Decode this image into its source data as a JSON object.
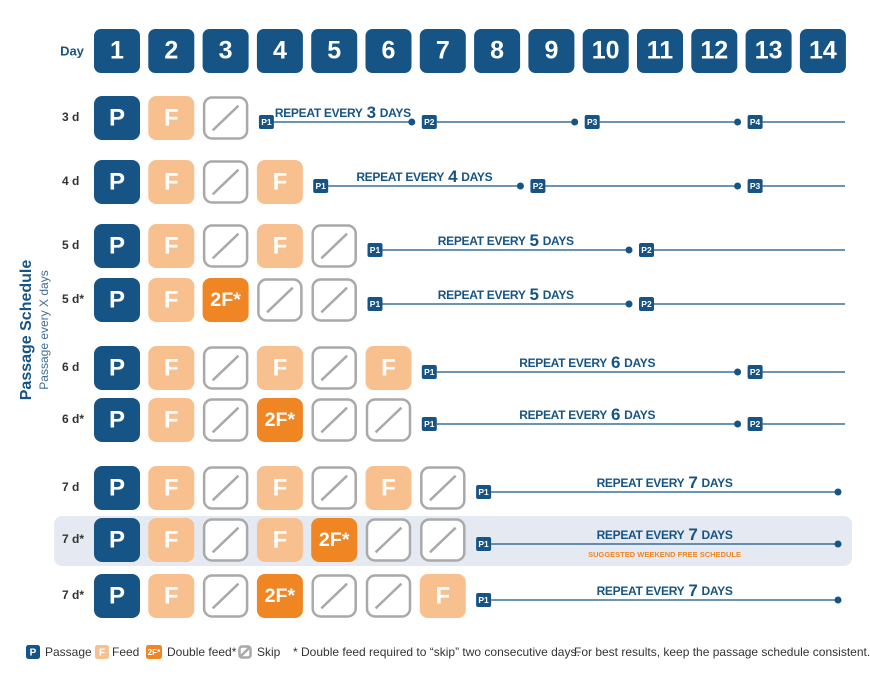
{
  "header": {
    "day_label": "Day",
    "days": [
      1,
      2,
      3,
      4,
      5,
      6,
      7,
      8,
      9,
      10,
      11,
      12,
      13,
      14
    ]
  },
  "side_title": "Passage Schedule",
  "side_subtitle": "Passage every X days",
  "rows": [
    {
      "label": "3 d",
      "cells": [
        "P",
        "F",
        null
      ],
      "repeat": {
        "prefix": "REPEAT EVERY",
        "number": 3,
        "suffix": "DAYS"
      },
      "markers": [
        "P1",
        "P2",
        "P3",
        "P4"
      ]
    },
    {
      "label": "4 d",
      "cells": [
        "P",
        "F",
        null,
        "F"
      ],
      "repeat": {
        "prefix": "REPEAT EVERY",
        "number": 4,
        "suffix": "DAYS"
      },
      "markers": [
        "P1",
        "P2",
        "P3"
      ]
    },
    {
      "label": "5 d",
      "cells": [
        "P",
        "F",
        null,
        "F",
        null
      ],
      "repeat": {
        "prefix": "REPEAT EVERY",
        "number": 5,
        "suffix": "DAYS"
      },
      "markers": [
        "P1",
        "P2"
      ]
    },
    {
      "label": "5 d*",
      "cells": [
        "P",
        "F",
        "2F*",
        null,
        null
      ],
      "repeat": {
        "prefix": "REPEAT EVERY",
        "number": 5,
        "suffix": "DAYS"
      },
      "markers": [
        "P1",
        "P2"
      ]
    },
    {
      "label": "6 d",
      "cells": [
        "P",
        "F",
        null,
        "F",
        null,
        "F"
      ],
      "repeat": {
        "prefix": "REPEAT EVERY",
        "number": 6,
        "suffix": "DAYS"
      },
      "markers": [
        "P1",
        "P2"
      ]
    },
    {
      "label": "6 d*",
      "cells": [
        "P",
        "F",
        null,
        "2F*",
        null,
        null
      ],
      "repeat": {
        "prefix": "REPEAT EVERY",
        "number": 6,
        "suffix": "DAYS"
      },
      "markers": [
        "P1",
        "P2"
      ]
    },
    {
      "label": "7 d",
      "cells": [
        "P",
        "F",
        null,
        "F",
        null,
        "F",
        null
      ],
      "repeat": {
        "prefix": "REPEAT EVERY",
        "number": 7,
        "suffix": "DAYS"
      },
      "markers": [
        "P1"
      ]
    },
    {
      "label": "7 d*",
      "cells": [
        "P",
        "F",
        null,
        "F",
        "2F*",
        null,
        null
      ],
      "repeat": {
        "prefix": "REPEAT EVERY",
        "number": 7,
        "suffix": "DAYS"
      },
      "markers": [
        "P1"
      ],
      "note": "SUGGESTED WEEKEND FREE SCHEDULE",
      "highlight": true
    },
    {
      "label": "7 d*",
      "cells": [
        "P",
        "F",
        null,
        "2F*",
        null,
        null,
        "F"
      ],
      "repeat": {
        "prefix": "REPEAT EVERY",
        "number": 7,
        "suffix": "DAYS"
      },
      "markers": [
        "P1"
      ]
    }
  ],
  "legend": {
    "items": [
      {
        "icon": "P",
        "label": "Passage"
      },
      {
        "icon": "F",
        "label": "Feed"
      },
      {
        "icon": "2F*",
        "label": "Double feed*"
      },
      {
        "icon": null,
        "label": "Skip"
      }
    ],
    "note": "* Double feed required to “skip” two consecutive days.",
    "tip": "For best results, keep the passage schedule consistent."
  }
}
